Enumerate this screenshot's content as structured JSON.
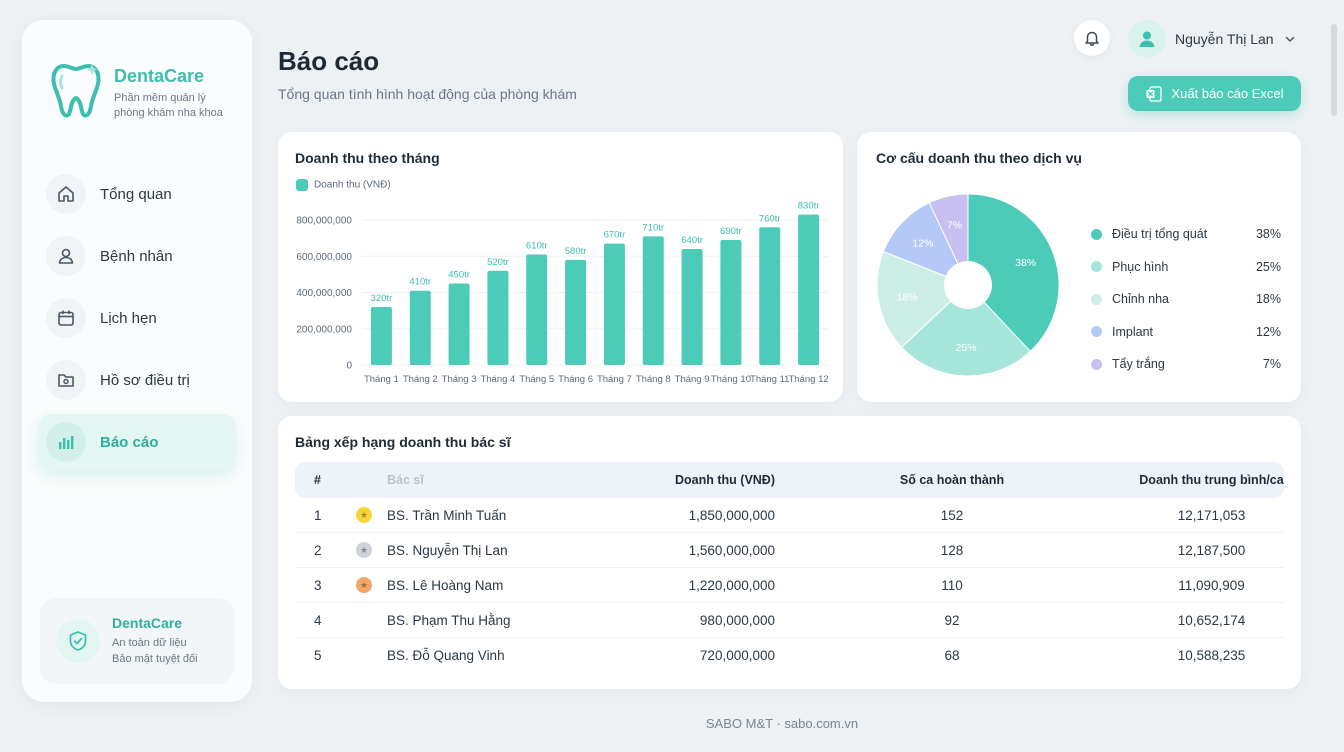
{
  "brand": {
    "name": "DentaCare",
    "subtitle_line1": "Phần mềm quản lý",
    "subtitle_line2": "phòng khám nha khoa"
  },
  "sidebar": {
    "items": [
      {
        "label": "Tổng quan",
        "icon": "home-icon"
      },
      {
        "label": "Bệnh nhân",
        "icon": "user-icon"
      },
      {
        "label": "Lịch hẹn",
        "icon": "calendar-icon"
      },
      {
        "label": "Hồ sơ điều trị",
        "icon": "folder-icon"
      },
      {
        "label": "Báo cáo",
        "icon": "bar-chart-icon",
        "active": true
      }
    ],
    "security": {
      "title": "DentaCare",
      "line1": "An toàn dữ liệu",
      "line2": "Bảo mật tuyệt đối"
    }
  },
  "header": {
    "title": "Báo cáo",
    "subtitle": "Tổng quan tình hình hoạt động của phòng khám",
    "user_name": "Nguyễn Thị Lan",
    "export_label": "Xuất báo cáo Excel"
  },
  "colors": {
    "accent": "#4ccbb9",
    "pie": [
      "#4ccbb9",
      "#a6e6da",
      "#cdeee6",
      "#b4c9f7",
      "#c7c0f1"
    ]
  },
  "chart_data": [
    {
      "type": "bar",
      "title": "Doanh thu theo tháng",
      "legend": "Doanh thu (VNĐ)",
      "categories": [
        "Tháng 1",
        "Tháng 2",
        "Tháng 3",
        "Tháng 4",
        "Tháng 5",
        "Tháng 6",
        "Tháng 7",
        "Tháng 8",
        "Tháng 9",
        "Tháng 10",
        "Tháng 11",
        "Tháng 12"
      ],
      "values": [
        320000000,
        410000000,
        450000000,
        520000000,
        610000000,
        580000000,
        670000000,
        710000000,
        640000000,
        690000000,
        760000000,
        830000000
      ],
      "data_labels": [
        "320tr",
        "410tr",
        "450tr",
        "520tr",
        "610tr",
        "580tr",
        "670tr",
        "710tr",
        "640tr",
        "690tr",
        "760tr",
        "830tr"
      ],
      "yticks": [
        0,
        200000000,
        400000000,
        600000000,
        800000000
      ],
      "ytick_labels": [
        "0",
        "200,000,000",
        "400,000,000",
        "600,000,000",
        "800,000,000"
      ],
      "ylim": [
        0,
        800000000
      ],
      "grid": true,
      "legend_position": "top-left"
    },
    {
      "type": "pie",
      "title": "Cơ cấu doanh thu theo dịch vụ",
      "categories": [
        "Điều trị tổng quát",
        "Phục hình",
        "Chỉnh nha",
        "Implant",
        "Tẩy trắng"
      ],
      "values": [
        38,
        25,
        18,
        12,
        7
      ],
      "labels": [
        "38%",
        "25%",
        "18%",
        "12%",
        "7%"
      ],
      "donut": true,
      "legend_position": "right"
    }
  ],
  "table": {
    "title": "Bảng xếp hạng doanh thu bác sĩ",
    "headers": [
      "#",
      "Bác sĩ",
      "Doanh thu (VNĐ)",
      "Số ca hoàn thành",
      "Doanh thu trung bình/ca"
    ],
    "rows": [
      {
        "rank": "1",
        "medal": "gold",
        "name": "BS. Trần Minh Tuấn",
        "revenue": "1,850,000,000",
        "cases": "152",
        "avg": "12,171,053"
      },
      {
        "rank": "2",
        "medal": "silver",
        "name": "BS. Nguyễn Thị Lan",
        "revenue": "1,560,000,000",
        "cases": "128",
        "avg": "12,187,500"
      },
      {
        "rank": "3",
        "medal": "bronze",
        "name": "BS. Lê Hoàng Nam",
        "revenue": "1,220,000,000",
        "cases": "110",
        "avg": "11,090,909"
      },
      {
        "rank": "4",
        "medal": "",
        "name": "BS. Phạm Thu Hằng",
        "revenue": "980,000,000",
        "cases": "92",
        "avg": "10,652,174"
      },
      {
        "rank": "5",
        "medal": "",
        "name": "BS. Đỗ Quang Vinh",
        "revenue": "720,000,000",
        "cases": "68",
        "avg": "10,588,235"
      }
    ]
  },
  "footer": "SABO M&T · sabo.com.vn"
}
